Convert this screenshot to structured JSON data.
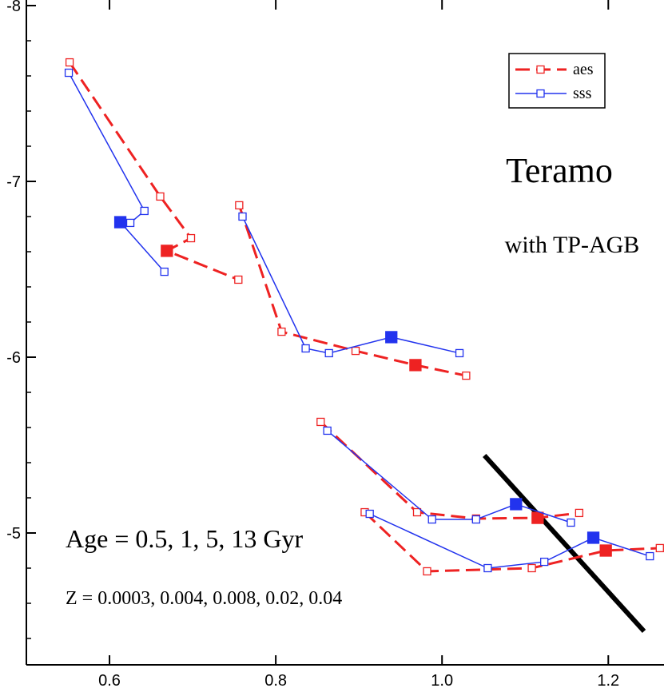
{
  "chart_data": {
    "type": "line",
    "title": "Teramo",
    "subtitle": "with TP-AGB",
    "annotations": [
      "Age = 0.5, 1, 5, 13 Gyr",
      "Z = 0.0003, 0.004, 0.008, 0.02, 0.04"
    ],
    "xlim": [
      0.5,
      1.267
    ],
    "ylim": [
      -8,
      -4.25
    ],
    "y_inverted": true,
    "xticks": [
      0.6,
      0.8,
      {
        "value": 1.0,
        "label": "1.0"
      },
      1.2
    ],
    "yticks": [
      -8,
      -7,
      -6,
      -5
    ],
    "yminorticks": [
      -7.8,
      -7.6,
      -7.4,
      -7.2,
      -6.8,
      -6.6,
      -6.4,
      -6.2,
      -5.8,
      -5.6,
      -5.4,
      -5.2,
      -4.8,
      -4.6,
      -4.4
    ],
    "legend_position": "upper right",
    "series": [
      {
        "name": "aes",
        "color": "#ee2222",
        "dashed": true,
        "x": [
          0.552,
          0.661,
          0.698,
          0.669,
          0.755,
          null,
          0.756,
          0.807,
          0.896,
          0.968,
          1.029,
          null,
          0.854,
          0.97,
          1.041,
          1.115,
          1.165,
          null,
          0.907,
          0.982,
          1.108,
          1.197,
          1.262
        ],
        "values": [
          -7.677,
          -6.914,
          -6.677,
          -6.605,
          -6.441,
          null,
          -6.864,
          -6.145,
          -6.036,
          -5.955,
          -5.895,
          null,
          -5.632,
          -5.118,
          -5.082,
          -5.086,
          -5.114,
          null,
          -5.118,
          -4.782,
          -4.8,
          -4.9,
          -4.914
        ],
        "filled": [
          false,
          false,
          false,
          true,
          false,
          false,
          false,
          false,
          false,
          true,
          false,
          false,
          false,
          false,
          false,
          true,
          false,
          false,
          false,
          false,
          false,
          true,
          false
        ]
      },
      {
        "name": "sss",
        "color": "#2233ee",
        "dashed": false,
        "x": [
          0.551,
          0.642,
          0.625,
          0.613,
          0.666,
          null,
          0.76,
          0.836,
          0.864,
          0.939,
          1.021,
          null,
          0.862,
          0.988,
          1.041,
          1.089,
          1.155,
          null,
          0.913,
          1.055,
          1.123,
          1.182,
          1.25
        ],
        "values": [
          -7.618,
          -6.832,
          -6.764,
          -6.768,
          -6.486,
          null,
          -6.8,
          -6.05,
          -6.023,
          -6.114,
          -6.023,
          null,
          -5.582,
          -5.077,
          -5.077,
          -5.164,
          -5.059,
          null,
          -5.109,
          -4.8,
          -4.836,
          -4.973,
          -4.868
        ],
        "filled": [
          false,
          false,
          false,
          true,
          false,
          false,
          false,
          false,
          false,
          true,
          false,
          false,
          false,
          false,
          false,
          true,
          false,
          false,
          false,
          false,
          false,
          true,
          false
        ]
      }
    ],
    "reference_line": {
      "color": "#000000",
      "x": [
        1.051,
        1.243
      ],
      "values": [
        -5.441,
        -4.441
      ]
    }
  }
}
